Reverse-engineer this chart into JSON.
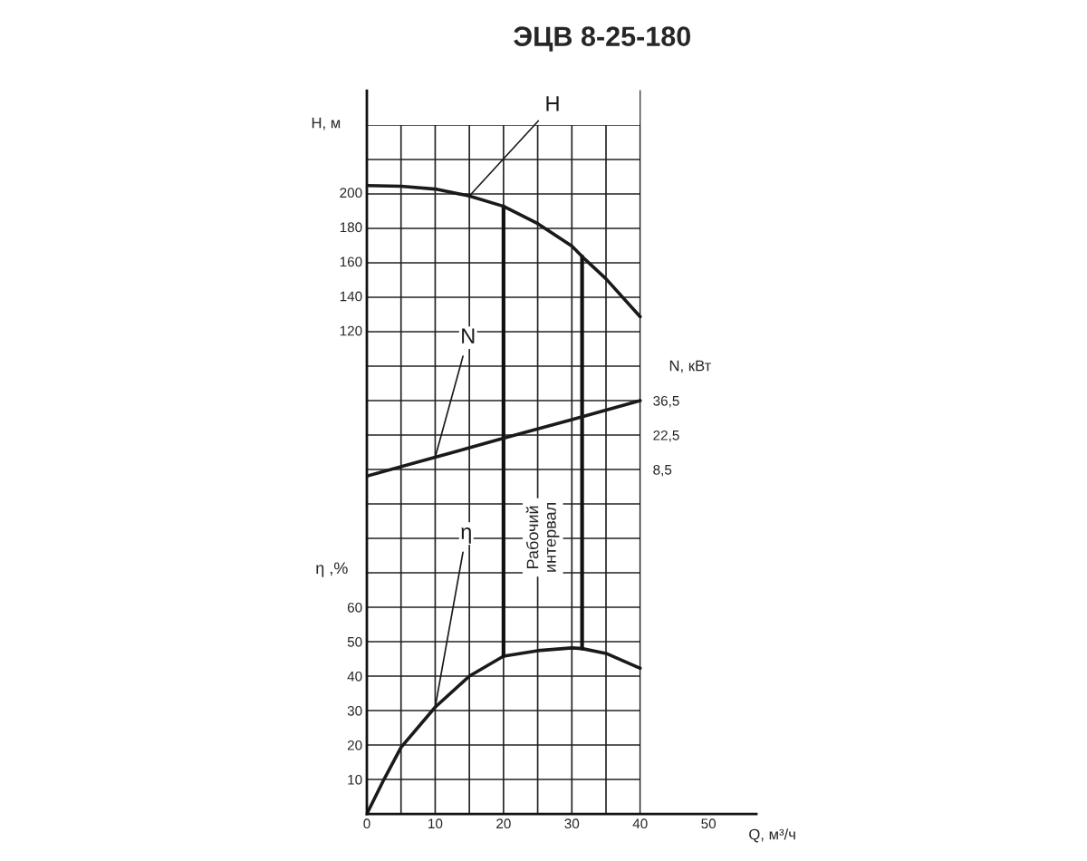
{
  "chart_data": {
    "type": "line",
    "title": "ЭЦВ 8-25-180",
    "xlabel": "Q, м³/ч",
    "ylabel": "H, м",
    "y2label": "N, кВт",
    "y3label": "η ,%",
    "xlim": [
      0,
      57
    ],
    "xticks": [
      0,
      {
        "value": 5,
        "label": null
      },
      10,
      {
        "value": 15,
        "label": null
      },
      20,
      {
        "value": 25,
        "label": null
      },
      30,
      {
        "value": 35,
        "label": null
      },
      40,
      50
    ],
    "ylim": [
      -160,
      259
    ],
    "yticks": [
      120,
      140,
      160,
      180,
      200
    ],
    "y2lim": [
      -131.5,
      162.5
    ],
    "y2ticks": [
      {
        "value": 8.5,
        "label": "8,5"
      },
      {
        "value": 22.5,
        "label": "22,5"
      },
      {
        "value": 36.5,
        "label": "36,5"
      }
    ],
    "y3lim": [
      0,
      210
    ],
    "y3ticks": [
      10,
      20,
      30,
      40,
      50,
      60,
      {
        "value": 70,
        "label": null
      },
      {
        "value": 80,
        "label": null
      },
      {
        "value": 90,
        "label": null
      },
      {
        "value": 100,
        "label": null
      },
      {
        "value": 110,
        "label": null
      },
      {
        "value": 120,
        "label": null
      },
      {
        "value": 130,
        "label": null
      },
      {
        "value": 140,
        "label": null
      },
      {
        "value": 150,
        "label": null
      },
      {
        "value": 160,
        "label": null
      },
      {
        "value": 170,
        "label": null
      },
      {
        "value": 180,
        "label": null
      },
      {
        "value": 190,
        "label": null
      },
      {
        "value": 200,
        "label": null
      }
    ],
    "grid": true,
    "marker": "none",
    "line_style": "solid",
    "series": [
      {
        "name": "H",
        "color": "#1a1a1a",
        "axis": "y",
        "x": [
          0,
          5,
          10,
          15,
          20,
          25,
          30,
          32,
          35,
          40
        ],
        "values": [
          204,
          203.6,
          202,
          198,
          192,
          182,
          169,
          161,
          150,
          128
        ]
      },
      {
        "name": "N",
        "color": "#1a1a1a",
        "axis": "y2",
        "x": [
          0,
          10,
          20,
          30,
          40
        ],
        "values": [
          5.8,
          13.5,
          21.2,
          28.8,
          36.5
        ]
      },
      {
        "name": "η",
        "color": "#1a1a1a",
        "axis": "y3",
        "x": [
          0,
          2.5,
          5,
          10,
          15,
          20,
          25,
          30,
          31.5,
          35,
          40
        ],
        "values": [
          0,
          10,
          19.3,
          31,
          40,
          45.8,
          47.4,
          48.2,
          48,
          46.6,
          42.3
        ]
      }
    ],
    "ref_lines": [
      {
        "axis": "x",
        "value": 20,
        "color": "#111111"
      },
      {
        "axis": "x",
        "value": 31.5,
        "color": "#111111"
      }
    ],
    "annotations": [
      "Рабочий\nинтервал"
    ]
  }
}
